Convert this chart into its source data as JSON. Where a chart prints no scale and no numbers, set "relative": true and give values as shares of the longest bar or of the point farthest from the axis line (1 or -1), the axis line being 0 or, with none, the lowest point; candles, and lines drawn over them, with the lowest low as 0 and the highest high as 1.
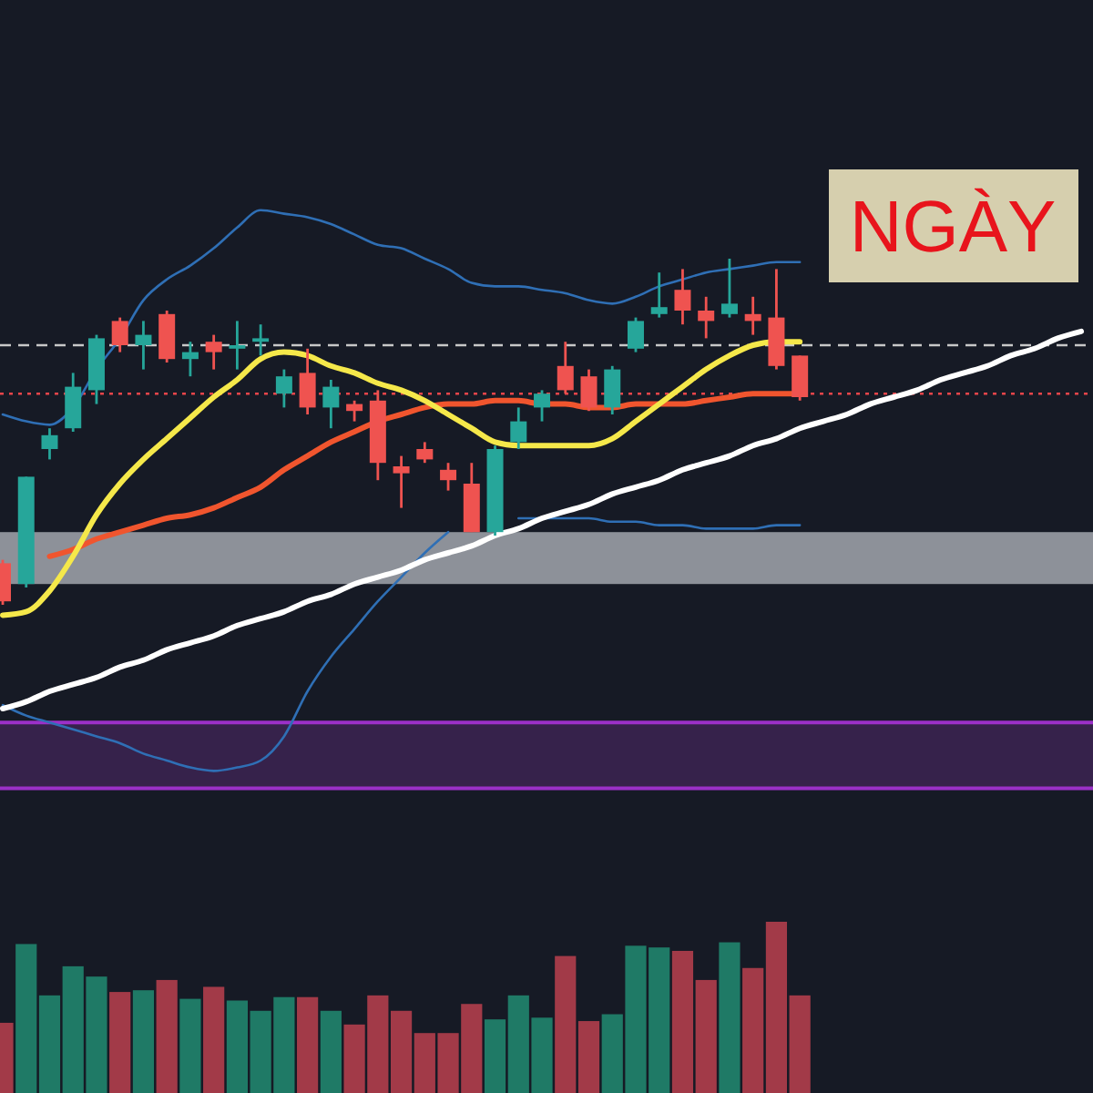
{
  "chart_data": [
    {
      "type": "candlestick",
      "relative": true,
      "annotations": [
        "NGÀY"
      ],
      "categories": [
        null,
        null,
        null,
        null,
        null,
        null,
        null,
        null,
        null,
        null,
        null,
        null,
        null,
        null,
        null,
        null,
        null,
        null,
        null,
        null,
        null,
        null,
        null,
        null,
        null,
        null,
        null,
        null,
        null,
        null,
        null,
        null,
        null,
        null,
        null,
        null,
        null,
        null,
        null,
        null,
        null,
        null,
        null,
        null,
        null,
        null,
        null
      ],
      "ohlc": [
        [
          0.12,
          0.13,
          0,
          0.01
        ],
        [
          0.06,
          0.37,
          0.05,
          0.37
        ],
        [
          0.45,
          0.51,
          0.42,
          0.49
        ],
        [
          0.51,
          0.67,
          0.5,
          0.63
        ],
        [
          0.62,
          0.78,
          0.58,
          0.77
        ],
        [
          0.82,
          0.83,
          0.73,
          0.75
        ],
        [
          0.75,
          0.82,
          0.68,
          0.78
        ],
        [
          0.84,
          0.85,
          0.7,
          0.71
        ],
        [
          0.71,
          0.76,
          0.66,
          0.73
        ],
        [
          0.76,
          0.78,
          0.68,
          0.73
        ],
        [
          0.74,
          0.82,
          0.68,
          0.75
        ],
        [
          0.76,
          0.81,
          0.72,
          0.77
        ],
        [
          0.61,
          0.68,
          0.57,
          0.66
        ],
        [
          0.67,
          0.74,
          0.55,
          0.57
        ],
        [
          0.57,
          0.65,
          0.51,
          0.63
        ],
        [
          0.58,
          0.59,
          0.53,
          0.56
        ],
        [
          0.59,
          0.62,
          0.36,
          0.41
        ],
        [
          0.4,
          0.43,
          0.28,
          0.38
        ],
        [
          0.45,
          0.47,
          0.41,
          0.42
        ],
        [
          0.39,
          0.41,
          0.33,
          0.36
        ],
        [
          0.35,
          0.41,
          0.21,
          0.21
        ],
        [
          0.21,
          0.46,
          0.2,
          0.45
        ],
        [
          0.47,
          0.57,
          0.45,
          0.53
        ],
        [
          0.57,
          0.62,
          0.53,
          0.61
        ],
        [
          0.69,
          0.76,
          0.61,
          0.62
        ],
        [
          0.66,
          0.68,
          0.56,
          0.57
        ],
        [
          0.57,
          0.69,
          0.55,
          0.68
        ],
        [
          0.74,
          0.83,
          0.73,
          0.82
        ],
        [
          0.84,
          0.96,
          0.83,
          0.86
        ],
        [
          0.91,
          0.97,
          0.81,
          0.85
        ],
        [
          0.85,
          0.89,
          0.77,
          0.82
        ],
        [
          0.84,
          1,
          0.83,
          0.87
        ],
        [
          0.84,
          0.89,
          0.78,
          0.82
        ],
        [
          0.83,
          0.97,
          0.68,
          0.69
        ],
        [
          0.72,
          0.72,
          0.59,
          0.6
        ],
        null,
        null,
        null,
        null,
        null,
        null,
        null,
        null,
        null,
        null,
        null,
        null
      ],
      "colors": [
        "#ef5350",
        "#26a69a",
        "#26a69a",
        "#26a69a",
        "#26a69a",
        "#ef5350",
        "#26a69a",
        "#ef5350",
        "#26a69a",
        "#ef5350",
        "#26a69a",
        "#26a69a",
        "#26a69a",
        "#ef5350",
        "#26a69a",
        "#ef5350",
        "#ef5350",
        "#ef5350",
        "#ef5350",
        "#ef5350",
        "#ef5350",
        "#26a69a",
        "#26a69a",
        "#26a69a",
        "#ef5350",
        "#ef5350",
        "#26a69a",
        "#26a69a",
        "#26a69a",
        "#ef5350",
        "#ef5350",
        "#26a69a",
        "#ef5350",
        "#ef5350",
        "#ef5350",
        null,
        null,
        null,
        null,
        null,
        null,
        null,
        null,
        null,
        null,
        null,
        null
      ],
      "series": [
        {
          "type": "line",
          "color": "#2f6fb5",
          "values": [
            0.55,
            0.53,
            0.52,
            0.57,
            0.68,
            0.77,
            0.88,
            0.94,
            0.98,
            1.03,
            1.09,
            1.14,
            1.13,
            1.12,
            1.1,
            1.07,
            1.04,
            1.03,
            1,
            0.97,
            0.93,
            0.92,
            0.92,
            0.91,
            0.9,
            0.88,
            0.87,
            0.89,
            0.92,
            0.94,
            0.96,
            0.97,
            0.98,
            0.99,
            0.99,
            null,
            null,
            null,
            null,
            null,
            null,
            null,
            null,
            null,
            null,
            null,
            null
          ]
        },
        {
          "type": "line",
          "color": "#2f6fb5",
          "values": [
            -0.29,
            -0.32,
            -0.34,
            -0.36,
            -0.38,
            -0.4,
            -0.43,
            -0.45,
            -0.47,
            -0.48,
            -0.47,
            -0.45,
            -0.38,
            -0.25,
            -0.15,
            -0.07,
            0.01,
            0.08,
            0.15,
            0.21,
            null,
            null,
            0.25,
            0.25,
            0.25,
            0.25,
            0.24,
            0.24,
            0.23,
            0.23,
            0.22,
            0.22,
            0.22,
            0.23,
            0.23,
            null,
            null,
            null,
            null,
            null,
            null,
            null,
            null,
            null,
            null,
            null,
            null
          ]
        },
        {
          "type": "line",
          "color": "#f0552e",
          "values": [
            null,
            null,
            0.14,
            0.16,
            0.19,
            0.21,
            0.23,
            0.25,
            0.26,
            0.28,
            0.31,
            0.34,
            0.39,
            0.43,
            0.47,
            0.5,
            0.53,
            0.55,
            0.57,
            0.58,
            0.58,
            0.59,
            0.59,
            0.58,
            0.58,
            0.57,
            0.57,
            0.58,
            0.58,
            0.58,
            0.59,
            0.6,
            0.61,
            0.61,
            0.61,
            null,
            null,
            null,
            null,
            null,
            null,
            null,
            null,
            null,
            null,
            null,
            null
          ]
        },
        {
          "type": "line",
          "color": "#f5e84a",
          "values": [
            -0.03,
            -0.02,
            0.04,
            0.14,
            0.26,
            0.35,
            0.42,
            0.48,
            0.54,
            0.6,
            0.65,
            0.71,
            0.73,
            0.72,
            0.69,
            0.67,
            0.64,
            0.62,
            0.59,
            0.55,
            0.51,
            0.47,
            0.46,
            0.46,
            0.46,
            0.46,
            0.48,
            0.53,
            0.58,
            0.63,
            0.68,
            0.72,
            0.75,
            0.76,
            0.76,
            null,
            null,
            null,
            null,
            null,
            null,
            null,
            null,
            null,
            null,
            null,
            null
          ]
        },
        {
          "type": "line",
          "color": "#ffffff",
          "values": [
            -0.3,
            -0.28,
            -0.25,
            -0.23,
            -0.21,
            -0.18,
            -0.16,
            -0.13,
            -0.11,
            -0.09,
            -0.06,
            -0.04,
            -0.02,
            0.01,
            0.03,
            0.06,
            0.08,
            0.1,
            0.13,
            0.15,
            0.17,
            0.2,
            0.22,
            0.25,
            0.27,
            0.29,
            0.32,
            0.34,
            0.36,
            0.39,
            0.41,
            0.43,
            0.46,
            0.48,
            0.51,
            0.53,
            0.55,
            0.58,
            0.6,
            0.62,
            0.65,
            0.67,
            0.69,
            0.72,
            0.74,
            0.77,
            0.79
          ]
        }
      ],
      "ref_lines": [
        {
          "axis": "y",
          "value": 0.75,
          "color": "#c8c8c8",
          "line_style": "dashed"
        },
        {
          "axis": "y",
          "value": 0.61,
          "color": "#e8454a",
          "line_style": "dotted"
        }
      ],
      "bands": [
        {
          "axis": "y",
          "from": 0.06,
          "to": 0.21,
          "color": "#9a9ea6"
        },
        {
          "axis": "y",
          "from": -0.53,
          "to": -0.34,
          "color": "#3a2450"
        }
      ]
    },
    {
      "type": "bar",
      "relative": true,
      "categories": [
        null,
        null,
        null,
        null,
        null,
        null,
        null,
        null,
        null,
        null,
        null,
        null,
        null,
        null,
        null,
        null,
        null,
        null,
        null,
        null,
        null,
        null,
        null,
        null,
        null,
        null,
        null,
        null,
        null,
        null,
        null,
        null,
        null,
        null,
        null,
        null,
        null,
        null,
        null,
        null,
        null,
        null,
        null,
        null,
        null,
        null,
        null
      ],
      "values": [
        0.41,
        0.87,
        0.57,
        0.74,
        0.68,
        0.59,
        0.6,
        0.66,
        0.55,
        0.62,
        0.54,
        0.48,
        0.56,
        0.56,
        0.48,
        0.4,
        0.57,
        0.48,
        0.35,
        0.35,
        0.52,
        0.43,
        0.57,
        0.44,
        0.8,
        0.42,
        0.46,
        0.86,
        0.85,
        0.83,
        0.66,
        0.88,
        0.73,
        1,
        0.57,
        null,
        null,
        null,
        null,
        null,
        null,
        null,
        null,
        null,
        null,
        null,
        null
      ],
      "colors": [
        "#a23a48",
        "#1f7a66",
        "#1f7a66",
        "#1f7a66",
        "#1f7a66",
        "#a23a48",
        "#1f7a66",
        "#a23a48",
        "#1f7a66",
        "#a23a48",
        "#1f7a66",
        "#1f7a66",
        "#1f7a66",
        "#a23a48",
        "#1f7a66",
        "#a23a48",
        "#a23a48",
        "#a23a48",
        "#a23a48",
        "#a23a48",
        "#a23a48",
        "#1f7a66",
        "#1f7a66",
        "#1f7a66",
        "#a23a48",
        "#a23a48",
        "#1f7a66",
        "#1f7a66",
        "#1f7a66",
        "#a23a48",
        "#a23a48",
        "#1f7a66",
        "#a23a48",
        "#a23a48",
        "#a23a48",
        null,
        null,
        null,
        null,
        null,
        null,
        null,
        null,
        null,
        null,
        null,
        null
      ]
    }
  ]
}
